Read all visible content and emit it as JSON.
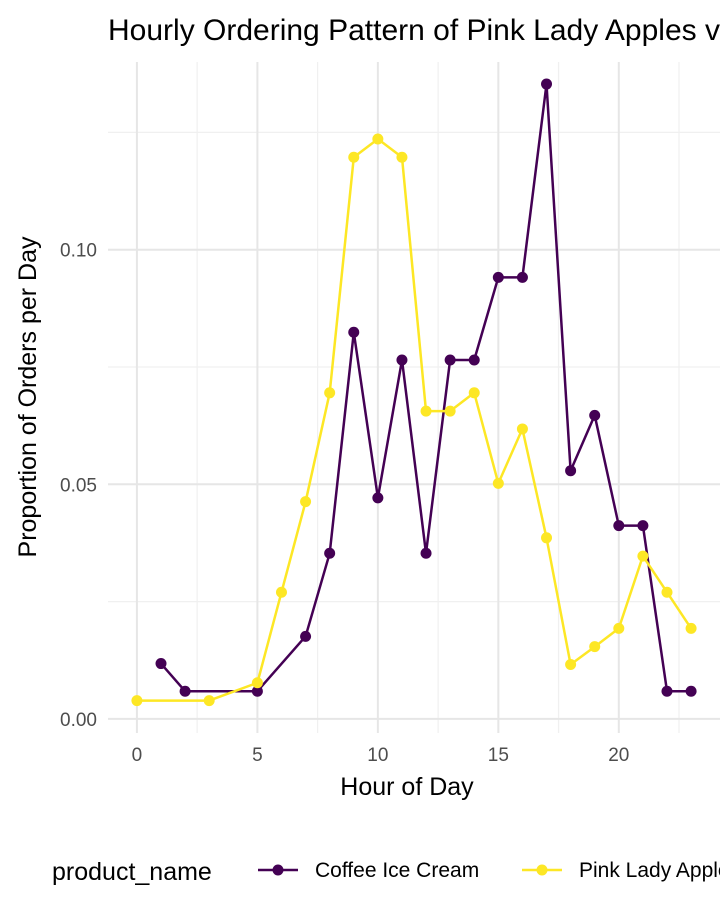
{
  "chart_data": {
    "type": "line",
    "title": "Hourly Ordering Pattern of Pink Lady Apples vs Coffee Ice Cream",
    "xlabel": "Hour of Day",
    "ylabel": "Proportion of Orders per Day",
    "xlim": [
      -1.2,
      24.2
    ],
    "ylim": [
      -0.003,
      0.14
    ],
    "x_ticks": [
      0,
      5,
      10,
      15,
      20
    ],
    "x_tick_labels": [
      "0",
      "5",
      "10",
      "15",
      "20"
    ],
    "y_ticks": [
      0,
      0.05,
      0.1
    ],
    "y_tick_labels": [
      "0.00",
      "0.05",
      "0.10"
    ],
    "grid": true,
    "legend": {
      "position": "bottom",
      "title": "product_name"
    },
    "series": [
      {
        "name": "Coffee Ice Cream",
        "color": "#440154",
        "x": [
          1,
          2,
          5,
          7,
          8,
          9,
          10,
          11,
          12,
          13,
          14,
          15,
          16,
          17,
          18,
          19,
          20,
          21,
          22,
          23
        ],
        "y": [
          0.0118,
          0.0059,
          0.0059,
          0.0176,
          0.0353,
          0.0824,
          0.0471,
          0.0765,
          0.0353,
          0.0765,
          0.0765,
          0.0941,
          0.0941,
          0.1353,
          0.0529,
          0.0647,
          0.0412,
          0.0412,
          0.0059,
          0.0059
        ]
      },
      {
        "name": "Pink Lady Apples",
        "color": "#fde725",
        "x": [
          0,
          3,
          5,
          6,
          7,
          8,
          9,
          10,
          11,
          12,
          13,
          14,
          15,
          16,
          17,
          18,
          19,
          20,
          21,
          22,
          23
        ],
        "y": [
          0.0039,
          0.0039,
          0.0077,
          0.027,
          0.0463,
          0.0695,
          0.1197,
          0.1236,
          0.1197,
          0.0656,
          0.0656,
          0.0695,
          0.0502,
          0.0618,
          0.0386,
          0.0116,
          0.0154,
          0.0193,
          0.0347,
          0.027,
          0.0193
        ]
      }
    ]
  }
}
